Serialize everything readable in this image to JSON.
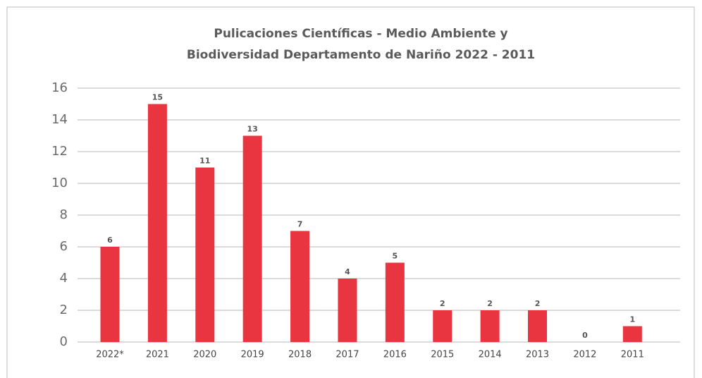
{
  "chart_data": {
    "type": "bar",
    "title": [
      "Pulicaciones Científicas - Medio Ambiente y",
      "Biodiversidad Departamento de Nariño 2022 - 2011"
    ],
    "categories": [
      "2022*",
      "2021",
      "2020",
      "2019",
      "2018",
      "2017",
      "2016",
      "2015",
      "2014",
      "2013",
      "2012",
      "2011"
    ],
    "values": [
      6,
      15,
      11,
      13,
      7,
      4,
      5,
      2,
      2,
      2,
      0,
      1
    ],
    "color": "#e8353f",
    "ylim": [
      0,
      16
    ],
    "yticks": [
      0,
      2,
      4,
      6,
      8,
      10,
      12,
      14,
      16
    ],
    "grid": true
  }
}
